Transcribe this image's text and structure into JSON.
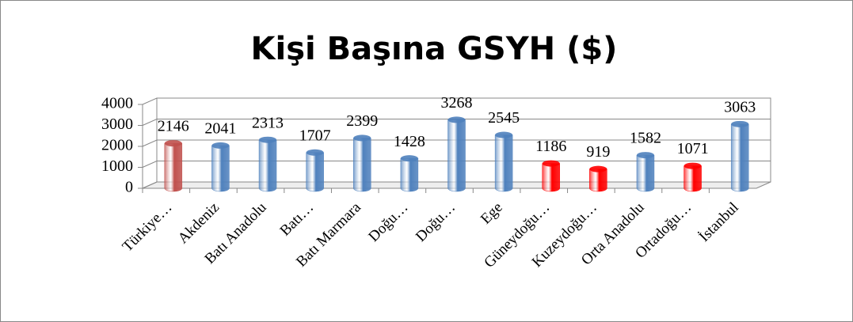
{
  "chart_data": {
    "type": "bar",
    "title": "Kişi Başına GSYH ($)",
    "categories": [
      "Türkiye…",
      "Akdeniz",
      "Batı Anadolu",
      "Batı…",
      "Batı Marmara",
      "Doğu…",
      "Doğu…",
      "Ege",
      "Güneydoğu…",
      "Kuzeydoğu…",
      "Orta Anadolu",
      "Ortadoğu…",
      "İstanbul"
    ],
    "values": [
      2146,
      2041,
      2313,
      1707,
      2399,
      1428,
      3268,
      2545,
      1186,
      919,
      1582,
      1071,
      3063
    ],
    "colors": [
      "#c0504d",
      "#4f81bd",
      "#4f81bd",
      "#4f81bd",
      "#4f81bd",
      "#4f81bd",
      "#4f81bd",
      "#4f81bd",
      "#ff0000",
      "#ff0000",
      "#4f81bd",
      "#ff0000",
      "#4f81bd"
    ],
    "ylim": [
      0,
      4000
    ],
    "yticks": [
      0,
      1000,
      2000,
      3000,
      4000
    ],
    "grid": true
  }
}
